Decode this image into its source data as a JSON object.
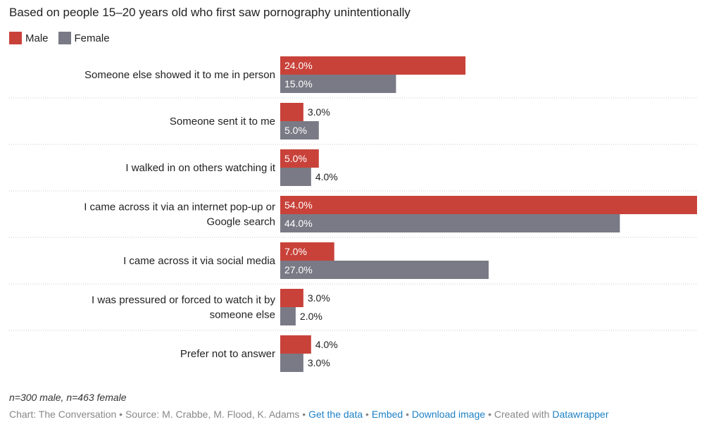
{
  "chart_data": {
    "type": "bar",
    "orientation": "horizontal",
    "subtitle": "Based on people 15–20 years old who first saw pornography unintentionally",
    "categories": [
      "Someone else showed it to me in person",
      "Someone sent it to me",
      "I walked in on others watching it",
      "I came across it via an internet pop-up or Google search",
      "I came across it via social media",
      "I was pressured or forced to watch it by someone else",
      "Prefer not to answer"
    ],
    "series": [
      {
        "name": "Male",
        "color": "#c8423a",
        "values": [
          24.0,
          3.0,
          5.0,
          54.0,
          7.0,
          3.0,
          4.0
        ],
        "labels": [
          "24.0%",
          "3.0%",
          "5.0%",
          "54.0%",
          "7.0%",
          "3.0%",
          "4.0%"
        ]
      },
      {
        "name": "Female",
        "color": "#7a7a86",
        "values": [
          15.0,
          5.0,
          4.0,
          44.0,
          27.0,
          2.0,
          3.0
        ],
        "labels": [
          "15.0%",
          "5.0%",
          "4.0%",
          "44.0%",
          "27.0%",
          "2.0%",
          "3.0%"
        ]
      }
    ],
    "xlim": [
      0,
      54
    ],
    "grid": false,
    "legend_position": "top-left"
  },
  "note": "n=300 male, n=463 female",
  "footer": {
    "credit": "Chart: The Conversation",
    "sep": "•",
    "source": "Source: M. Crabbe, M. Flood, K. Adams",
    "link_data": "Get the data",
    "link_embed": "Embed",
    "link_download": "Download image",
    "created": "Created with",
    "link_tool": "Datawrapper"
  }
}
